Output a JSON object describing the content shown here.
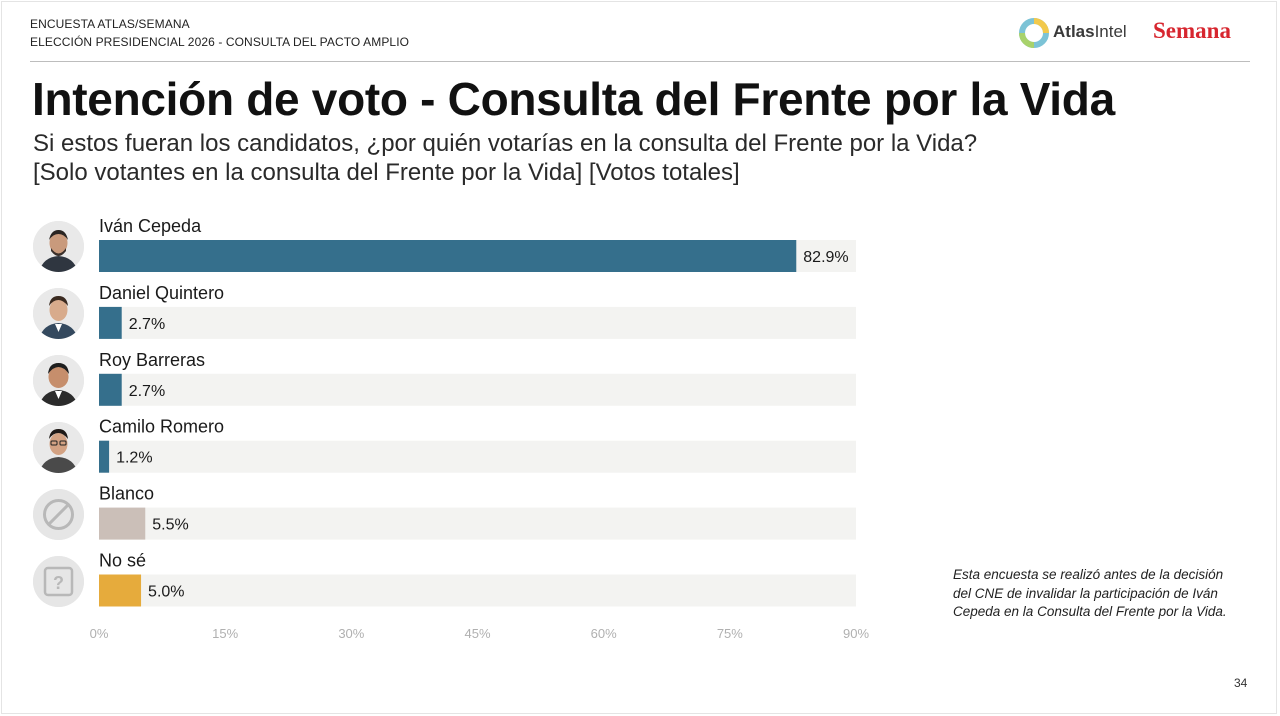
{
  "header": {
    "line1": "ENCUESTA ATLAS/SEMANA",
    "line2": "ELECCIÓN PRESIDENCIAL 2026 - CONSULTA DEL PACTO AMPLIO",
    "atlas_bold": "Atlas",
    "atlas_rest": "Intel",
    "semana": "Semana"
  },
  "subtitle_line2": "[Solo votantes en la consulta del Frente por la Vida] [Votos totales]",
  "note": "Esta encuesta se realizó antes de la decisión del CNE de invalidar la participación de Iván Cepeda en la Consulta del Frente por la Vida.",
  "page_number": "34",
  "colors": {
    "candidate_bar": "#356f8c",
    "blanco_bar": "#cbbfb8",
    "nose_bar": "#e6ab3c",
    "track": "#f3f3f1"
  },
  "icons": [
    "person-icon",
    "person-icon",
    "person-icon",
    "person-icon",
    "prohibited-icon",
    "question-mark-icon"
  ],
  "chart_data": {
    "type": "bar",
    "orientation": "horizontal",
    "title": "Intención de voto - Consulta del Frente por la Vida",
    "subtitle": "Si estos fueran los candidatos, ¿por quién votarías en la consulta del Frente por la Vida?",
    "categories": [
      "Iván Cepeda",
      "Daniel Quintero",
      "Roy Barreras",
      "Camilo Romero",
      "Blanco",
      "No sé"
    ],
    "values": [
      82.9,
      2.7,
      2.7,
      1.2,
      5.5,
      5.0
    ],
    "value_labels": [
      "82.9%",
      "2.7%",
      "2.7%",
      "1.2%",
      "5.5%",
      "5.0%"
    ],
    "bar_colors": [
      "#356f8c",
      "#356f8c",
      "#356f8c",
      "#356f8c",
      "#cbbfb8",
      "#e6ab3c"
    ],
    "xlim": [
      0,
      90
    ],
    "xticks": [
      0,
      15,
      30,
      45,
      60,
      75,
      90
    ],
    "xtick_labels": [
      "0%",
      "15%",
      "30%",
      "45%",
      "60%",
      "75%",
      "90%"
    ],
    "xlabel": "",
    "ylabel": ""
  }
}
